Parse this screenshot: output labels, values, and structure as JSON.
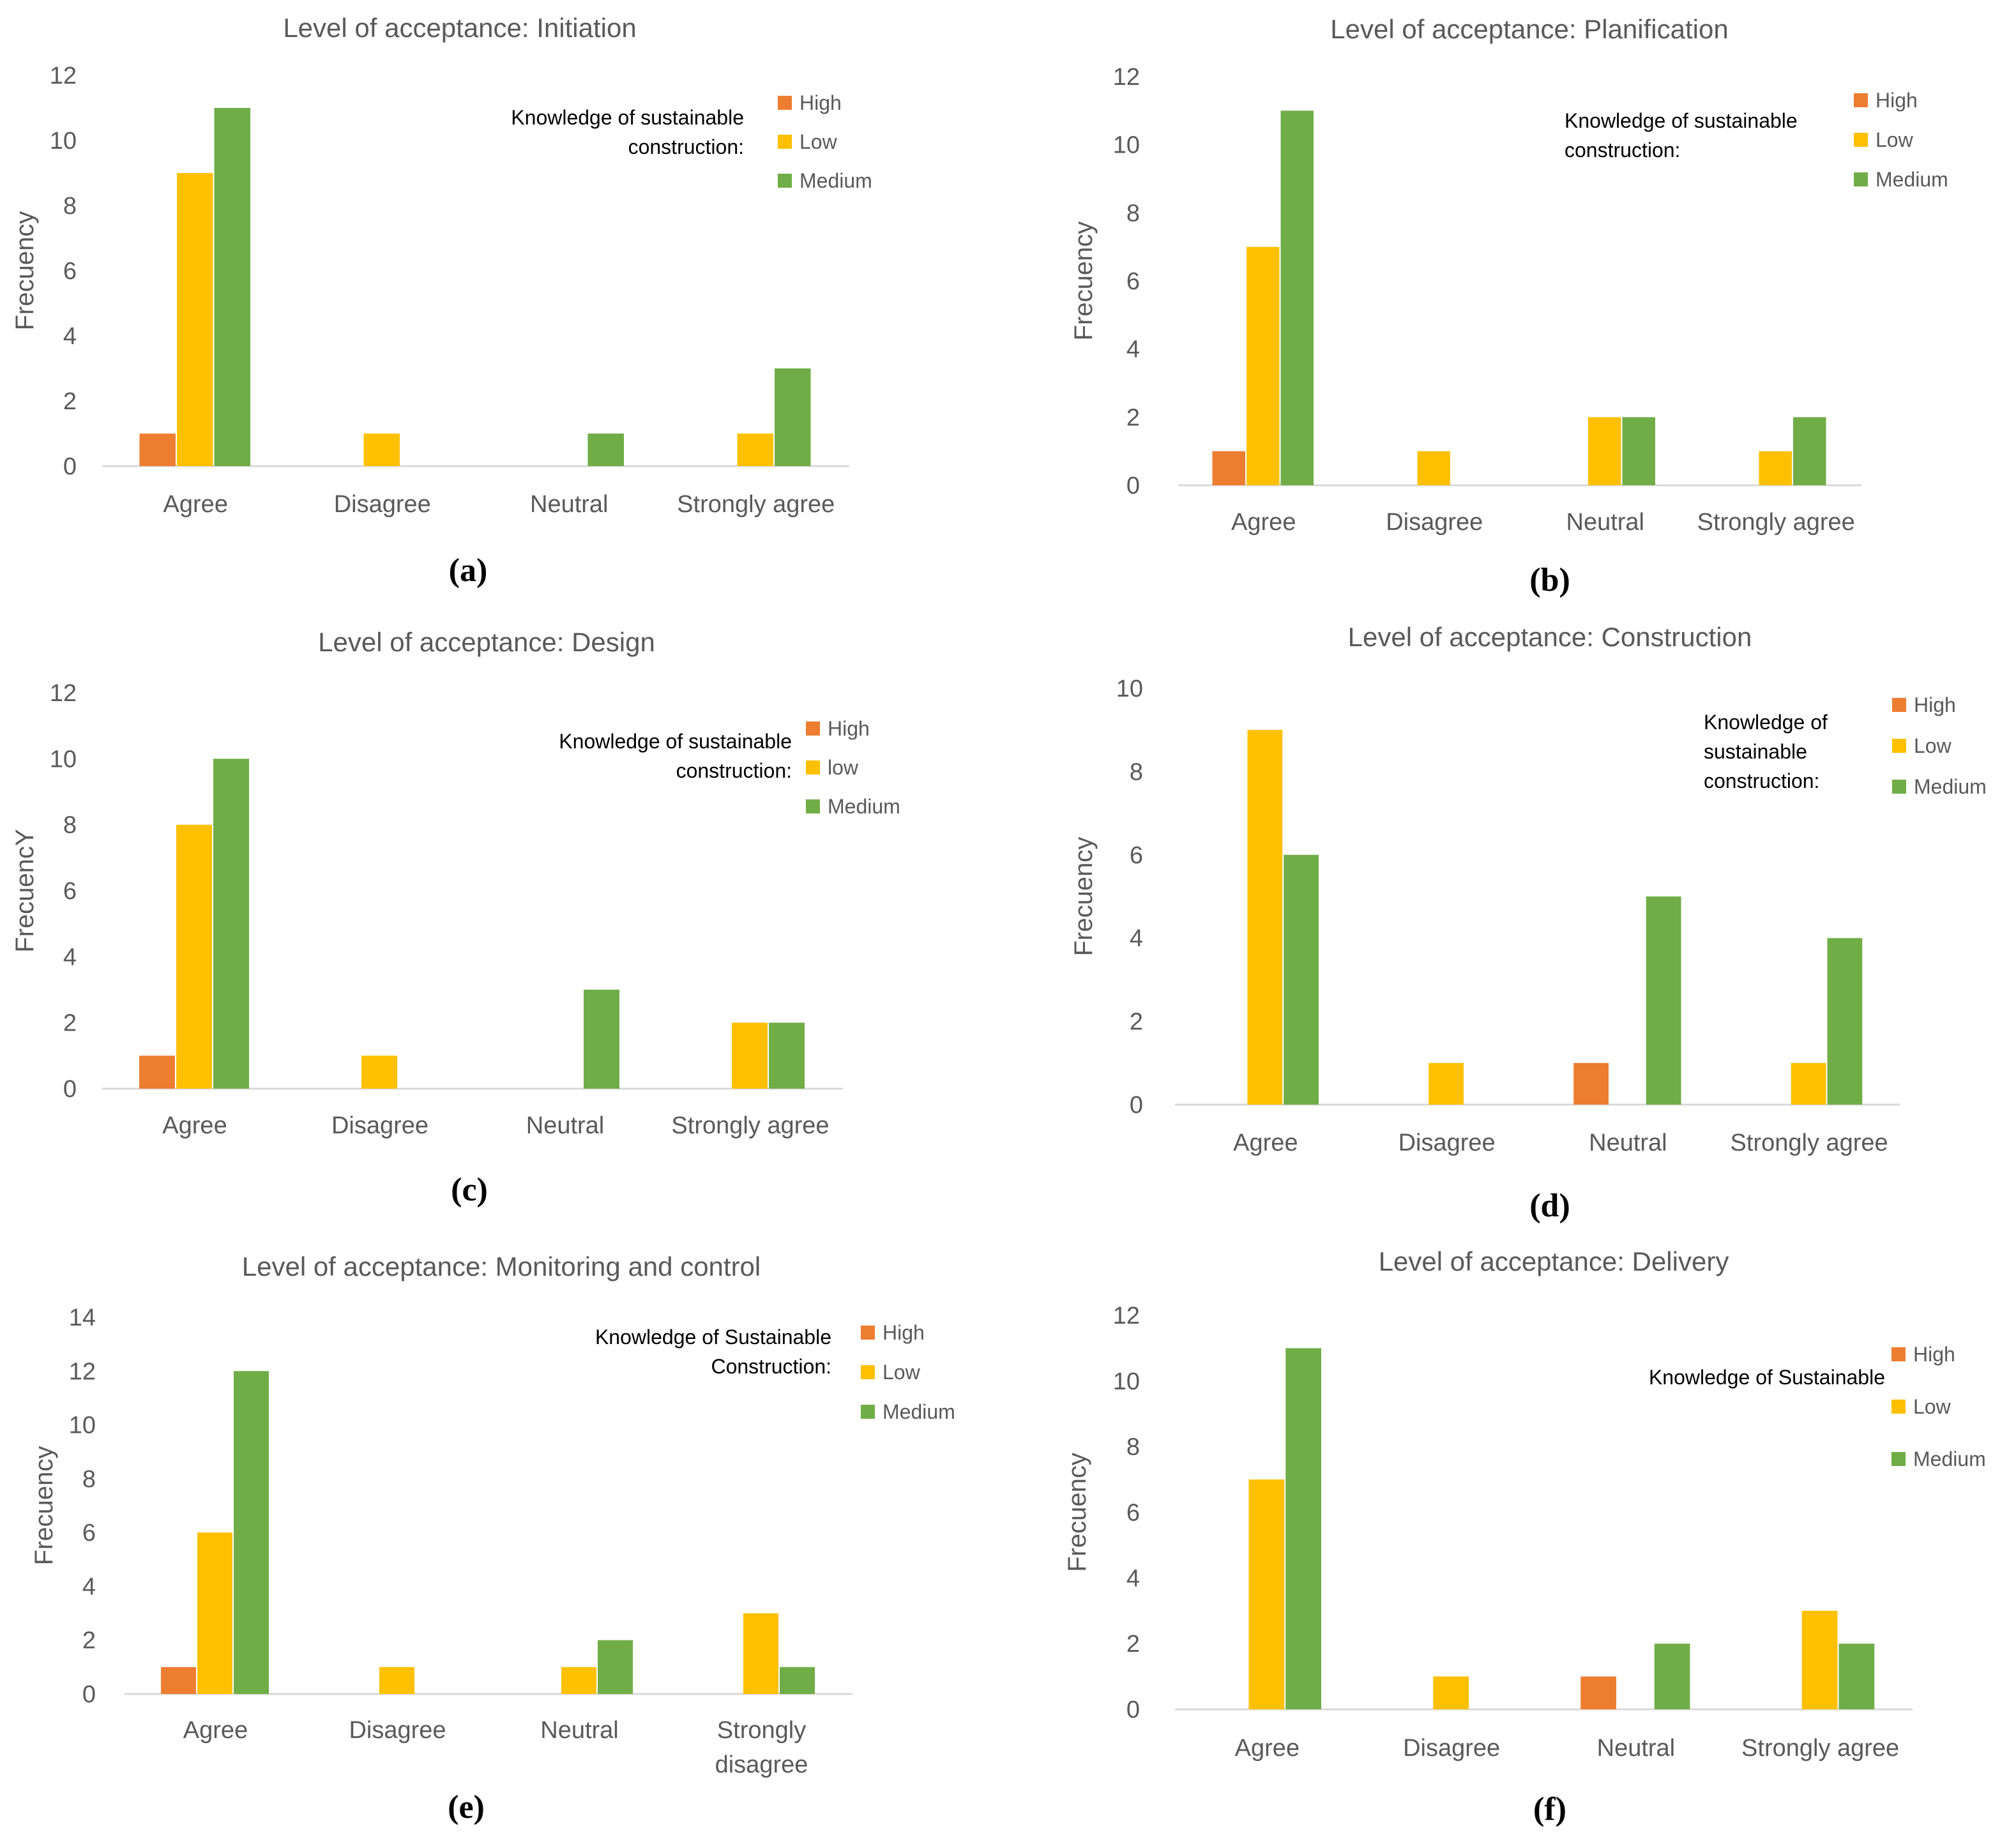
{
  "colors": {
    "High": "#ED7D31",
    "Low": "#FFC000",
    "Medium": "#70AD47"
  },
  "chart_data": [
    {
      "type": "bar",
      "panel_label": "(a)",
      "title": "Level of acceptance: Initiation",
      "ylabel": "Frecuency",
      "xlabel": "",
      "ylim": [
        0,
        12
      ],
      "yticks": [
        0,
        2,
        4,
        6,
        8,
        10,
        12
      ],
      "categories": [
        "Agree",
        "Disagree",
        "Neutral",
        "Strongly agree"
      ],
      "legend_title_lines": [
        "Knowledge of sustainable",
        "construction:"
      ],
      "series": [
        {
          "name": "High",
          "label": "High",
          "values": [
            1,
            0,
            0,
            0
          ]
        },
        {
          "name": "Low",
          "label": "Low",
          "values": [
            9,
            1,
            0,
            1
          ]
        },
        {
          "name": "Medium",
          "label": "Medium",
          "values": [
            11,
            0,
            1,
            3
          ]
        }
      ]
    },
    {
      "type": "bar",
      "panel_label": "(b)",
      "title": "Level of acceptance: Planification",
      "ylabel": "Frecuency",
      "xlabel": "",
      "ylim": [
        0,
        12
      ],
      "yticks": [
        0,
        2,
        4,
        6,
        8,
        10,
        12
      ],
      "categories": [
        "Agree",
        "Disagree",
        "Neutral",
        "Strongly agree"
      ],
      "legend_title_lines": [
        "Knowledge of sustainable",
        "construction:"
      ],
      "series": [
        {
          "name": "High",
          "label": "High",
          "values": [
            1,
            0,
            0,
            0
          ]
        },
        {
          "name": "Low",
          "label": "Low",
          "values": [
            7,
            1,
            2,
            1
          ]
        },
        {
          "name": "Medium",
          "label": "Medium",
          "values": [
            11,
            0,
            2,
            2
          ]
        }
      ]
    },
    {
      "type": "bar",
      "panel_label": "(c)",
      "title": "Level of acceptance: Design",
      "ylabel": "FrecuencY",
      "xlabel": "",
      "ylim": [
        0,
        12
      ],
      "yticks": [
        0,
        2,
        4,
        6,
        8,
        10,
        12
      ],
      "categories": [
        "Agree",
        "Disagree",
        "Neutral",
        "Strongly agree"
      ],
      "legend_title_lines": [
        "Knowledge of sustainable",
        "construction:"
      ],
      "series": [
        {
          "name": "High",
          "label": "High",
          "values": [
            1,
            0,
            0,
            0
          ]
        },
        {
          "name": "Low",
          "label": "low",
          "values": [
            8,
            1,
            0,
            2
          ]
        },
        {
          "name": "Medium",
          "label": "Medium",
          "values": [
            10,
            0,
            3,
            2
          ]
        }
      ]
    },
    {
      "type": "bar",
      "panel_label": "(d)",
      "title": "Level of acceptance: Construction",
      "ylabel": "Frecuency",
      "xlabel": "",
      "ylim": [
        0,
        10
      ],
      "yticks": [
        0,
        2,
        4,
        6,
        8,
        10
      ],
      "categories": [
        "Agree",
        "Disagree",
        "Neutral",
        "Strongly agree"
      ],
      "legend_title_lines": [
        "Knowledge of",
        "sustainable",
        "construction:"
      ],
      "series": [
        {
          "name": "High",
          "label": "High",
          "values": [
            0,
            0,
            1,
            0
          ]
        },
        {
          "name": "Low",
          "label": "Low",
          "values": [
            9,
            1,
            0,
            1
          ]
        },
        {
          "name": "Medium",
          "label": "Medium",
          "values": [
            6,
            0,
            5,
            4
          ]
        }
      ]
    },
    {
      "type": "bar",
      "panel_label": "(e)",
      "title": "Level of acceptance: Monitoring and control",
      "ylabel": "Frecuency",
      "xlabel": "",
      "ylim": [
        0,
        14
      ],
      "yticks": [
        0,
        2,
        4,
        6,
        8,
        10,
        12,
        14
      ],
      "categories": [
        "Agree",
        "Disagree",
        "Neutral",
        "Strongly disagree"
      ],
      "legend_title_lines": [
        "Knowledge of Sustainable",
        "Construction:"
      ],
      "series": [
        {
          "name": "High",
          "label": "High",
          "values": [
            1,
            0,
            0,
            0
          ]
        },
        {
          "name": "Low",
          "label": "Low",
          "values": [
            6,
            1,
            1,
            3
          ]
        },
        {
          "name": "Medium",
          "label": "Medium",
          "values": [
            12,
            0,
            2,
            1
          ]
        }
      ]
    },
    {
      "type": "bar",
      "panel_label": "(f)",
      "title": "Level of acceptance: Delivery",
      "ylabel": "Frecuency",
      "xlabel": "",
      "ylim": [
        0,
        12
      ],
      "yticks": [
        0,
        2,
        4,
        6,
        8,
        10,
        12
      ],
      "categories": [
        "Agree",
        "Disagree",
        "Neutral",
        "Strongly agree"
      ],
      "legend_title_lines": [
        "Knowledge of Sustainable"
      ],
      "series": [
        {
          "name": "High",
          "label": "High",
          "values": [
            0,
            0,
            1,
            0
          ]
        },
        {
          "name": "Low",
          "label": "Low",
          "values": [
            7,
            1,
            0,
            3
          ]
        },
        {
          "name": "Medium",
          "label": "Medium",
          "values": [
            11,
            0,
            2,
            2
          ]
        }
      ]
    }
  ]
}
